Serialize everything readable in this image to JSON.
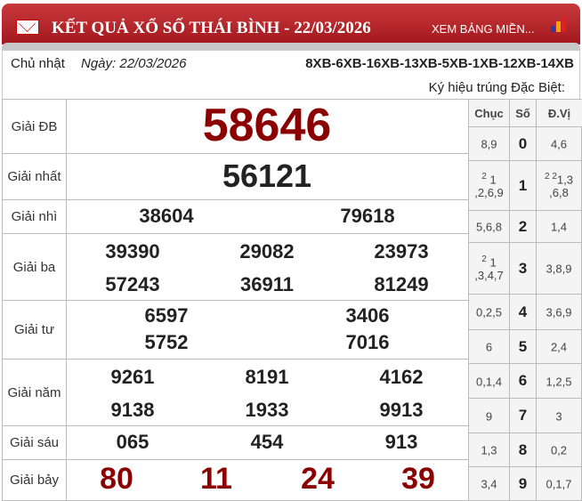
{
  "header": {
    "title": "KẾT QUẢ XỔ SỐ THÁI BÌNH - 22/03/2026",
    "more_link": "XEM BẢNG MIỀN...",
    "icons": [
      "mail-icon",
      "bar-chart-icon"
    ],
    "accent": "#b3252a"
  },
  "info": {
    "day": "Chủ nhật",
    "date": "Ngày: 22/03/2026",
    "codes": "8XB-6XB-16XB-13XB-5XB-1XB-12XB-14XB",
    "ky_hieu_label": "Ký hiệu trúng Đặc Biệt:"
  },
  "prizes": [
    {
      "label": "Giải ĐB",
      "numbers": [
        "58646"
      ]
    },
    {
      "label": "Giải nhất",
      "numbers": [
        "56121"
      ]
    },
    {
      "label": "Giải nhì",
      "numbers": [
        "38604",
        "79618"
      ]
    },
    {
      "label": "Giải ba",
      "numbers": [
        "39390",
        "29082",
        "23973",
        "57243",
        "36911",
        "81249"
      ]
    },
    {
      "label": "Giải tư",
      "numbers": [
        "6597",
        "3406",
        "5752",
        "7016"
      ]
    },
    {
      "label": "Giải năm",
      "numbers": [
        "9261",
        "8191",
        "4162",
        "9138",
        "1933",
        "9913"
      ]
    },
    {
      "label": "Giải sáu",
      "numbers": [
        "065",
        "454",
        "913"
      ]
    },
    {
      "label": "Giải bảy",
      "numbers": [
        "80",
        "11",
        "24",
        "39"
      ]
    }
  ],
  "loto": {
    "headers": [
      "Chục",
      "Số",
      "Đ.Vị"
    ],
    "rows": [
      {
        "chuc_sup": "",
        "chuc": "8,9",
        "so": "0",
        "dv_sup": "",
        "dv": "4,6"
      },
      {
        "chuc_sup": "2",
        "chuc": "1 ,2,6,9",
        "so": "1",
        "dv_sup": "2 2",
        "dv": "1,3 ,6,8"
      },
      {
        "chuc_sup": "",
        "chuc": "5,6,8",
        "so": "2",
        "dv_sup": "",
        "dv": "1,4"
      },
      {
        "chuc_sup": "2",
        "chuc": "1 ,3,4,7",
        "so": "3",
        "dv_sup": "",
        "dv": "3,8,9"
      },
      {
        "chuc_sup": "",
        "chuc": "0,2,5",
        "so": "4",
        "dv_sup": "",
        "dv": "3,6,9"
      },
      {
        "chuc_sup": "",
        "chuc": "6",
        "so": "5",
        "dv_sup": "",
        "dv": "2,4"
      },
      {
        "chuc_sup": "",
        "chuc": "0,1,4",
        "so": "6",
        "dv_sup": "",
        "dv": "1,2,5"
      },
      {
        "chuc_sup": "",
        "chuc": "9",
        "so": "7",
        "dv_sup": "",
        "dv": "3"
      },
      {
        "chuc_sup": "",
        "chuc": "1,3",
        "so": "8",
        "dv_sup": "",
        "dv": "0,2"
      },
      {
        "chuc_sup": "",
        "chuc": "3,4",
        "so": "9",
        "dv_sup": "",
        "dv": "0,1,7"
      }
    ]
  }
}
